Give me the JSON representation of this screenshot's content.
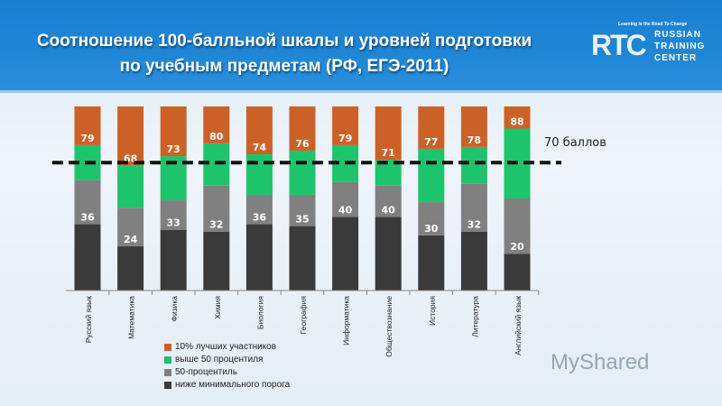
{
  "header": {
    "title_line1": "Соотношение 100-балльной шкалы и уровней подготовки",
    "title_line2": "по учебным предметам (РФ, ЕГЭ-2011)",
    "logo": {
      "letters": "RTC",
      "tagline": "Learning is the Road To Change",
      "line1": "RUSSIAN",
      "line2": "TRAINING",
      "line3": "CENTER"
    }
  },
  "watermark": "MyShared",
  "chart_data": {
    "type": "bar",
    "stacked": true,
    "categories": [
      "Русский язык",
      "Математика",
      "Физика",
      "Химия",
      "Биология",
      "География",
      "Информатика",
      "Обществознание",
      "История",
      "Литература",
      "Английский язык"
    ],
    "series": [
      {
        "name": "ниже минимального порога",
        "color": "#3a3a3a",
        "values": [
          36,
          24,
          33,
          32,
          36,
          35,
          40,
          40,
          30,
          32,
          20
        ]
      },
      {
        "name": "50-процентиль",
        "color": "#808080",
        "top_values": [
          60,
          45,
          49,
          57,
          52,
          52,
          59,
          57,
          48,
          58,
          50
        ]
      },
      {
        "name": "выше 50 процентиля",
        "color": "#1ec46b",
        "top_values": [
          79,
          68,
          73,
          80,
          74,
          76,
          79,
          71,
          77,
          78,
          88
        ]
      },
      {
        "name": "10% лучших участников",
        "color": "#cc6128",
        "top_values": [
          100,
          100,
          100,
          100,
          100,
          100,
          100,
          100,
          100,
          100,
          100
        ]
      }
    ],
    "data_labels_low": [
      36,
      24,
      33,
      32,
      36,
      35,
      40,
      40,
      30,
      32,
      20
    ],
    "data_labels_high": [
      79,
      68,
      73,
      80,
      74,
      76,
      79,
      71,
      77,
      78,
      88
    ],
    "ylim": [
      0,
      100
    ],
    "threshold": {
      "value": 70,
      "label": "70 баллов"
    },
    "legend_placement": "bottom-left",
    "grid": false
  }
}
